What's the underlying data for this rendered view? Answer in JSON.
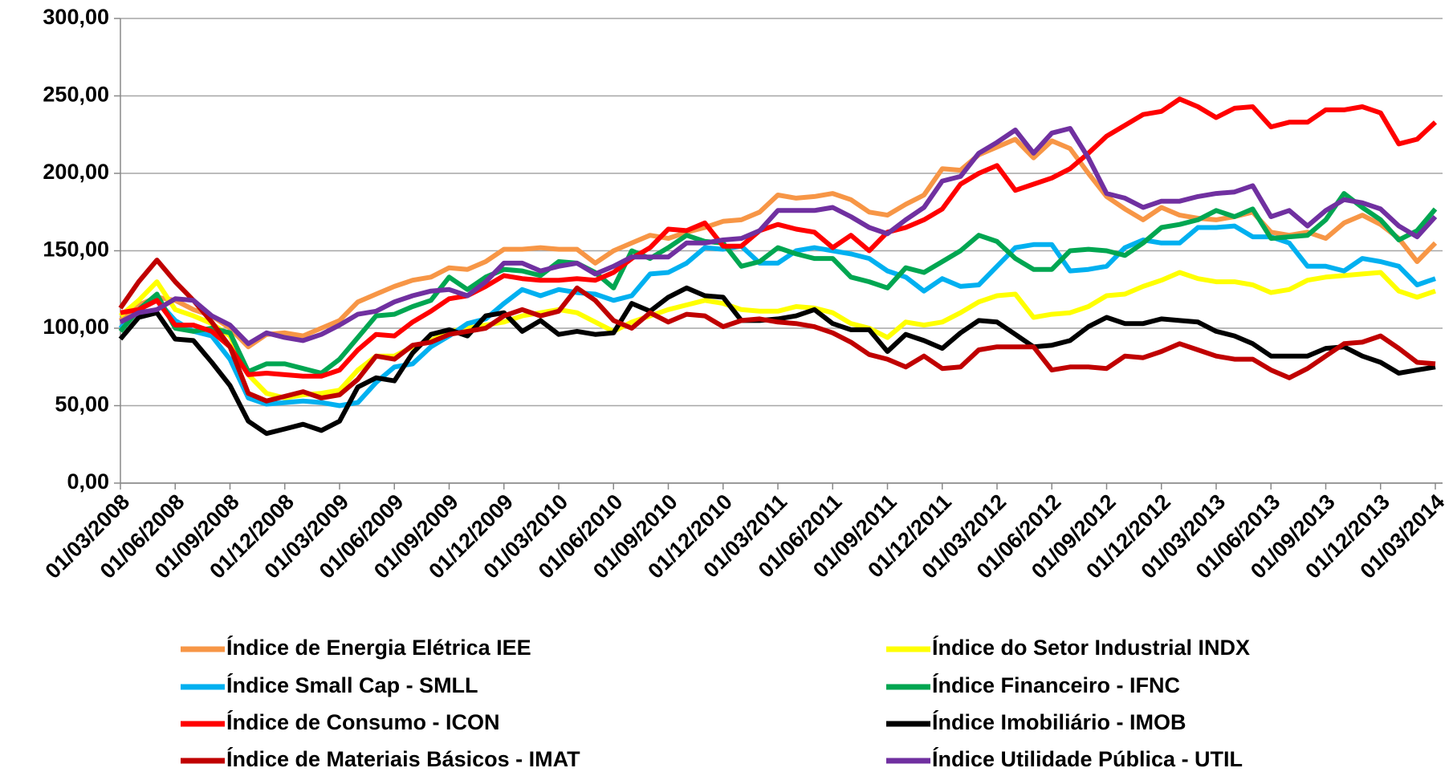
{
  "chart_data": {
    "type": "line",
    "categories": [
      "01/03/2008",
      null,
      null,
      "01/06/2008",
      null,
      null,
      "01/09/2008",
      null,
      null,
      "01/12/2008",
      null,
      null,
      "01/03/2009",
      null,
      null,
      "01/06/2009",
      null,
      null,
      "01/09/2009",
      null,
      null,
      "01/12/2009",
      null,
      null,
      "01/03/2010",
      null,
      null,
      "01/06/2010",
      null,
      null,
      "01/09/2010",
      null,
      null,
      "01/12/2010",
      null,
      null,
      "01/03/2011",
      null,
      null,
      "01/06/2011",
      null,
      null,
      "01/09/2011",
      null,
      null,
      "01/12/2011",
      null,
      null,
      "01/03/2012",
      null,
      null,
      "01/06/2012",
      null,
      null,
      "01/09/2012",
      null,
      null,
      "01/12/2012",
      null,
      null,
      "01/03/2013",
      null,
      null,
      "01/06/2013",
      null,
      null,
      "01/09/2013",
      null,
      null,
      "01/12/2013",
      null,
      null,
      "01/03/2014"
    ],
    "series": [
      {
        "name": "Índice de Energia Elétrica IEE",
        "color": "#f79646",
        "values": [
          105,
          115,
          120,
          118,
          112,
          108,
          100,
          88,
          96,
          97,
          95,
          100,
          105,
          117,
          122,
          127,
          131,
          133,
          139,
          138,
          143,
          151,
          151,
          152,
          151,
          151,
          142,
          150,
          155,
          160,
          158,
          162,
          165,
          169,
          170,
          175,
          186,
          184,
          185,
          187,
          183,
          175,
          173,
          180,
          186,
          203,
          202,
          212,
          217,
          222,
          210,
          221,
          216,
          200,
          185,
          177,
          170,
          178,
          173,
          171,
          170,
          172,
          175,
          162,
          160,
          162,
          158,
          168,
          173,
          167,
          158,
          143,
          155
        ]
      },
      {
        "name": "Índice do Setor Industrial INDX",
        "color": "#ffff00",
        "values": [
          108,
          118,
          130,
          112,
          108,
          103,
          95,
          70,
          58,
          55,
          57,
          58,
          60,
          73,
          82,
          82,
          88,
          92,
          98,
          100,
          102,
          104,
          108,
          110,
          112,
          110,
          104,
          98,
          104,
          108,
          112,
          115,
          118,
          116,
          112,
          111,
          111,
          114,
          113,
          110,
          103,
          100,
          94,
          104,
          102,
          104,
          110,
          117,
          121,
          122,
          107,
          109,
          110,
          114,
          121,
          122,
          127,
          131,
          136,
          132,
          130,
          130,
          128,
          123,
          125,
          131,
          133,
          134,
          135,
          136,
          124,
          120,
          124
        ]
      },
      {
        "name": "Índice Small Cap - SMLL",
        "color": "#00b0f0",
        "values": [
          100,
          112,
          118,
          105,
          98,
          95,
          80,
          55,
          51,
          52,
          53,
          52,
          50,
          52,
          65,
          75,
          77,
          88,
          95,
          103,
          106,
          116,
          125,
          121,
          125,
          123,
          122,
          118,
          121,
          135,
          136,
          142,
          152,
          151,
          153,
          142,
          142,
          150,
          152,
          150,
          148,
          145,
          137,
          133,
          124,
          132,
          127,
          128,
          140,
          152,
          154,
          154,
          137,
          138,
          140,
          152,
          157,
          155,
          155,
          165,
          165,
          166,
          159,
          159,
          155,
          140,
          140,
          137,
          145,
          143,
          140,
          128,
          132
        ]
      },
      {
        "name": "Índice Financeiro - IFNC",
        "color": "#00a651",
        "values": [
          98,
          112,
          122,
          100,
          98,
          100,
          97,
          72,
          77,
          77,
          74,
          71,
          80,
          94,
          108,
          109,
          114,
          118,
          133,
          125,
          133,
          138,
          137,
          134,
          143,
          142,
          136,
          126,
          150,
          145,
          152,
          160,
          156,
          155,
          140,
          143,
          152,
          148,
          145,
          145,
          133,
          130,
          126,
          139,
          136,
          143,
          150,
          160,
          156,
          145,
          138,
          138,
          150,
          151,
          150,
          147,
          155,
          165,
          167,
          170,
          176,
          172,
          177,
          158,
          159,
          160,
          170,
          187,
          178,
          170,
          157,
          163,
          177
        ]
      },
      {
        "name": "Índice de Consumo - ICON",
        "color": "#ff0000",
        "values": [
          110,
          112,
          118,
          102,
          102,
          98,
          88,
          70,
          71,
          70,
          69,
          69,
          73,
          86,
          96,
          95,
          104,
          111,
          119,
          121,
          127,
          134,
          132,
          131,
          131,
          132,
          131,
          136,
          145,
          152,
          164,
          163,
          168,
          153,
          153,
          163,
          167,
          164,
          162,
          152,
          160,
          150,
          162,
          165,
          170,
          177,
          193,
          200,
          205,
          189,
          193,
          197,
          203,
          213,
          224,
          231,
          238,
          240,
          248,
          243,
          236,
          242,
          243,
          230,
          233,
          233,
          241,
          241,
          243,
          239,
          219,
          222,
          233
        ]
      },
      {
        "name": "Índice Imobiliário - IMOB",
        "color": "#000000",
        "values": [
          93,
          107,
          110,
          93,
          92,
          78,
          63,
          40,
          32,
          35,
          38,
          34,
          40,
          62,
          68,
          66,
          84,
          96,
          99,
          95,
          108,
          110,
          98,
          105,
          96,
          98,
          96,
          97,
          116,
          111,
          120,
          126,
          121,
          120,
          105,
          105,
          106,
          108,
          112,
          103,
          99,
          99,
          85,
          96,
          92,
          87,
          97,
          105,
          104,
          96,
          88,
          89,
          92,
          101,
          107,
          103,
          103,
          106,
          105,
          104,
          98,
          95,
          90,
          82,
          82,
          82,
          87,
          88,
          82,
          78,
          71,
          73,
          75
        ]
      },
      {
        "name": "Índice de Materiais Básicos - IMAT",
        "color": "#c00000",
        "values": [
          113,
          130,
          144,
          130,
          118,
          104,
          88,
          58,
          53,
          56,
          59,
          55,
          57,
          67,
          82,
          80,
          89,
          91,
          96,
          98,
          100,
          108,
          112,
          108,
          111,
          126,
          118,
          105,
          100,
          110,
          104,
          109,
          108,
          101,
          105,
          106,
          104,
          103,
          101,
          97,
          91,
          83,
          80,
          75,
          82,
          74,
          75,
          86,
          88,
          88,
          88,
          73,
          75,
          75,
          74,
          82,
          81,
          85,
          90,
          86,
          82,
          80,
          80,
          73,
          68,
          74,
          82,
          90,
          91,
          95,
          87,
          78,
          77
        ]
      },
      {
        "name": "Índice Utilidade Pública - UTIL",
        "color": "#7030a0",
        "values": [
          104,
          110,
          112,
          119,
          118,
          108,
          102,
          90,
          97,
          94,
          92,
          96,
          102,
          109,
          111,
          117,
          121,
          124,
          125,
          121,
          130,
          142,
          142,
          137,
          140,
          142,
          135,
          140,
          146,
          146,
          146,
          155,
          155,
          157,
          158,
          163,
          176,
          176,
          176,
          178,
          172,
          165,
          161,
          170,
          178,
          195,
          198,
          213,
          220,
          228,
          213,
          226,
          229,
          210,
          187,
          184,
          178,
          182,
          182,
          185,
          187,
          188,
          192,
          172,
          176,
          166,
          176,
          183,
          181,
          177,
          166,
          159,
          172
        ]
      }
    ],
    "ylim": [
      0,
      300
    ],
    "yticks": [
      {
        "value": 0,
        "label": "0,00"
      },
      {
        "value": 50,
        "label": "50,00"
      },
      {
        "value": 100,
        "label": "100,00"
      },
      {
        "value": 150,
        "label": "150,00"
      },
      {
        "value": 200,
        "label": "200,00"
      },
      {
        "value": 250,
        "label": "250,00"
      },
      {
        "value": 300,
        "label": "300,00"
      }
    ],
    "grid": true,
    "legend": "bottom"
  }
}
